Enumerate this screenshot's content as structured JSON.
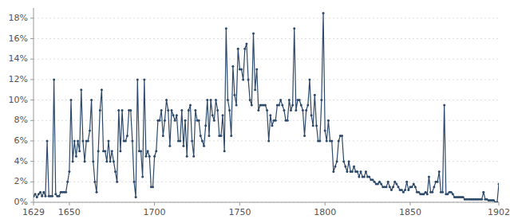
{
  "chart_data": {
    "type": "line",
    "color": "#2E4A6B",
    "marker": "circle",
    "line_style": "solid",
    "grid": true,
    "xlim": [
      1629,
      1902
    ],
    "ylim": [
      0,
      0.19
    ],
    "xticks": [
      1629,
      1650,
      1700,
      1750,
      1800,
      1850,
      1902
    ],
    "yticks": [
      {
        "value": 0,
        "label": "0%"
      },
      {
        "value": 0.02,
        "label": "2%"
      },
      {
        "value": 0.04,
        "label": "4%"
      },
      {
        "value": 0.06,
        "label": "6%"
      },
      {
        "value": 0.08,
        "label": "8%"
      },
      {
        "value": 0.1,
        "label": "10%"
      },
      {
        "value": 0.12,
        "label": "12%"
      },
      {
        "value": 0.14,
        "label": "14%"
      },
      {
        "value": 0.16,
        "label": "16%"
      },
      {
        "value": 0.18,
        "label": "18%"
      }
    ],
    "x": [
      1629,
      1630,
      1631,
      1632,
      1633,
      1634,
      1635,
      1636,
      1637,
      1638,
      1639,
      1640,
      1641,
      1642,
      1643,
      1644,
      1645,
      1646,
      1647,
      1648,
      1649,
      1650,
      1651,
      1652,
      1653,
      1654,
      1655,
      1656,
      1657,
      1658,
      1659,
      1660,
      1661,
      1662,
      1663,
      1664,
      1665,
      1666,
      1667,
      1668,
      1669,
      1670,
      1671,
      1672,
      1673,
      1674,
      1675,
      1676,
      1677,
      1678,
      1679,
      1680,
      1681,
      1682,
      1683,
      1684,
      1685,
      1686,
      1687,
      1688,
      1689,
      1690,
      1691,
      1692,
      1693,
      1694,
      1695,
      1696,
      1697,
      1698,
      1699,
      1700,
      1701,
      1702,
      1703,
      1704,
      1705,
      1706,
      1707,
      1708,
      1709,
      1710,
      1711,
      1712,
      1713,
      1714,
      1715,
      1716,
      1717,
      1718,
      1719,
      1720,
      1721,
      1722,
      1723,
      1724,
      1725,
      1726,
      1727,
      1728,
      1729,
      1730,
      1731,
      1732,
      1733,
      1734,
      1735,
      1736,
      1737,
      1738,
      1739,
      1740,
      1741,
      1742,
      1743,
      1744,
      1745,
      1746,
      1747,
      1748,
      1749,
      1750,
      1751,
      1752,
      1753,
      1754,
      1755,
      1756,
      1757,
      1758,
      1759,
      1760,
      1761,
      1762,
      1763,
      1764,
      1765,
      1766,
      1767,
      1768,
      1769,
      1770,
      1771,
      1772,
      1773,
      1774,
      1775,
      1776,
      1777,
      1778,
      1779,
      1780,
      1781,
      1782,
      1783,
      1784,
      1785,
      1786,
      1787,
      1788,
      1789,
      1790,
      1791,
      1792,
      1793,
      1794,
      1795,
      1796,
      1797,
      1798,
      1799,
      1800,
      1801,
      1802,
      1803,
      1804,
      1805,
      1806,
      1807,
      1808,
      1809,
      1810,
      1811,
      1812,
      1813,
      1814,
      1815,
      1816,
      1817,
      1818,
      1819,
      1820,
      1821,
      1822,
      1823,
      1824,
      1825,
      1826,
      1827,
      1828,
      1829,
      1830,
      1831,
      1832,
      1833,
      1834,
      1835,
      1836,
      1837,
      1838,
      1839,
      1840,
      1841,
      1842,
      1843,
      1844,
      1845,
      1846,
      1847,
      1848,
      1849,
      1850,
      1851,
      1852,
      1853,
      1854,
      1855,
      1856,
      1857,
      1858,
      1859,
      1860,
      1861,
      1862,
      1863,
      1864,
      1865,
      1866,
      1867,
      1868,
      1869,
      1870,
      1871,
      1872,
      1873,
      1874,
      1875,
      1876,
      1877,
      1878,
      1879,
      1880,
      1881,
      1882,
      1883,
      1884,
      1885,
      1886,
      1887,
      1888,
      1889,
      1890,
      1891,
      1892,
      1893,
      1894,
      1895,
      1896,
      1897,
      1898,
      1899,
      1900,
      1901,
      1902
    ],
    "values": [
      0.006,
      0.008,
      0.005,
      0.008,
      0.01,
      0.006,
      0.01,
      0.006,
      0.06,
      0.006,
      0.006,
      0.006,
      0.12,
      0.008,
      0.006,
      0.006,
      0.01,
      0.01,
      0.01,
      0.01,
      0.02,
      0.03,
      0.1,
      0.04,
      0.06,
      0.045,
      0.06,
      0.05,
      0.11,
      0.06,
      0.04,
      0.06,
      0.06,
      0.07,
      0.1,
      0.04,
      0.02,
      0.01,
      0.05,
      0.09,
      0.11,
      0.05,
      0.05,
      0.04,
      0.06,
      0.04,
      0.05,
      0.04,
      0.03,
      0.02,
      0.09,
      0.05,
      0.09,
      0.06,
      0.06,
      0.065,
      0.09,
      0.09,
      0.06,
      0.02,
      0.005,
      0.12,
      0.05,
      0.05,
      0.025,
      0.12,
      0.045,
      0.05,
      0.045,
      0.015,
      0.015,
      0.045,
      0.05,
      0.08,
      0.08,
      0.09,
      0.065,
      0.08,
      0.1,
      0.09,
      0.055,
      0.09,
      0.085,
      0.08,
      0.085,
      0.06,
      0.06,
      0.09,
      0.055,
      0.08,
      0.045,
      0.09,
      0.095,
      0.06,
      0.045,
      0.09,
      0.08,
      0.08,
      0.065,
      0.06,
      0.055,
      0.075,
      0.1,
      0.065,
      0.1,
      0.085,
      0.08,
      0.1,
      0.09,
      0.065,
      0.065,
      0.085,
      0.05,
      0.17,
      0.1,
      0.09,
      0.065,
      0.133,
      0.105,
      0.095,
      0.15,
      0.13,
      0.13,
      0.12,
      0.15,
      0.155,
      0.12,
      0.1,
      0.095,
      0.165,
      0.11,
      0.13,
      0.09,
      0.095,
      0.095,
      0.095,
      0.095,
      0.09,
      0.06,
      0.085,
      0.075,
      0.08,
      0.08,
      0.095,
      0.095,
      0.1,
      0.095,
      0.09,
      0.08,
      0.08,
      0.1,
      0.09,
      0.095,
      0.17,
      0.09,
      0.1,
      0.1,
      0.095,
      0.09,
      0.065,
      0.09,
      0.095,
      0.12,
      0.085,
      0.075,
      0.105,
      0.075,
      0.06,
      0.06,
      0.1,
      0.185,
      0.07,
      0.06,
      0.08,
      0.06,
      0.06,
      0.03,
      0.035,
      0.04,
      0.06,
      0.065,
      0.065,
      0.04,
      0.035,
      0.03,
      0.04,
      0.03,
      0.03,
      0.035,
      0.03,
      0.03,
      0.025,
      0.03,
      0.025,
      0.025,
      0.03,
      0.025,
      0.025,
      0.022,
      0.022,
      0.02,
      0.018,
      0.018,
      0.02,
      0.018,
      0.015,
      0.015,
      0.015,
      0.02,
      0.015,
      0.012,
      0.015,
      0.02,
      0.018,
      0.015,
      0.012,
      0.012,
      0.01,
      0.012,
      0.02,
      0.012,
      0.015,
      0.015,
      0.018,
      0.015,
      0.01,
      0.01,
      0.008,
      0.008,
      0.008,
      0.01,
      0.008,
      0.025,
      0.01,
      0.01,
      0.015,
      0.02,
      0.02,
      0.03,
      0.01,
      0.01,
      0.095,
      0.008,
      0.008,
      0.01,
      0.01,
      0.008,
      0.005,
      0.005,
      0.005,
      0.005,
      0.005,
      0.005,
      0.003,
      0.003,
      0.003,
      0.003,
      0.003,
      0.003,
      0.003,
      0.003,
      0.003,
      0.003,
      0.003,
      0.01,
      0.003,
      0.003,
      0.002,
      0.002,
      0.002,
      0.002,
      0.0,
      0.0,
      0.018
    ]
  }
}
